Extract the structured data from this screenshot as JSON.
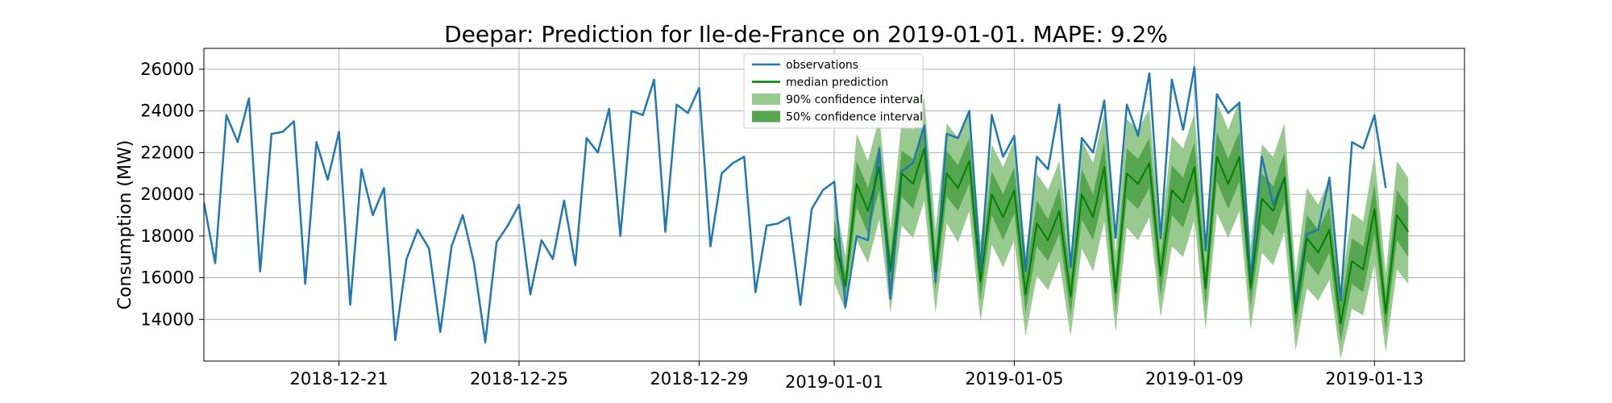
{
  "chart_data": {
    "type": "line",
    "title": "Deepar: Prediction for Ile-de-France on 2019-01-01. MAPE: 9.2%",
    "xlabel": "",
    "ylabel": "Consumption (MW)",
    "xlim": [
      "2018-12-18T00:00",
      "2019-01-15T00:00"
    ],
    "ylim": [
      12000,
      27000
    ],
    "y_ticks": [
      14000,
      16000,
      18000,
      20000,
      22000,
      24000,
      26000
    ],
    "x_ticks": [
      "2018-12-21",
      "2018-12-25",
      "2018-12-29",
      "2019-01-01",
      "2019-01-05",
      "2019-01-09",
      "2019-01-13"
    ],
    "grid": true,
    "legend_position": "top-center",
    "legend": [
      {
        "label": "observations",
        "kind": "line",
        "color": "#1f77b4"
      },
      {
        "label": "median prediction",
        "kind": "line",
        "color": "#008000"
      },
      {
        "label": "90% confidence interval",
        "kind": "band",
        "color": "#98c98f"
      },
      {
        "label": "50% confidence interval",
        "kind": "band",
        "color": "#56a64f"
      }
    ],
    "colors": {
      "observations": "#1f77b4",
      "median": "#008000",
      "band90": "#98c98f",
      "band50": "#56a64f"
    },
    "observations": {
      "start": "2018-12-18T00:00",
      "step_hours": 6,
      "values": [
        19600,
        16700,
        23800,
        22500,
        24600,
        16300,
        22900,
        23000,
        23500,
        15700,
        22500,
        20700,
        23000,
        14700,
        21200,
        19000,
        20300,
        13000,
        16900,
        18300,
        17400,
        13400,
        17500,
        19000,
        16700,
        12900,
        17700,
        18500,
        19500,
        15200,
        17800,
        16900,
        19700,
        16600,
        22700,
        22000,
        24100,
        18000,
        24000,
        23800,
        25500,
        18200,
        24300,
        23900,
        25100,
        17500,
        21000,
        21500,
        21800,
        15300,
        18500,
        18600,
        18900,
        14700,
        19300,
        20200,
        20600,
        14600,
        18000,
        17800,
        22200,
        15000,
        21100,
        21500,
        23300,
        15800,
        22900,
        22700,
        24000,
        16400,
        23800,
        21800,
        22800,
        16300,
        21800,
        21200,
        24300,
        16500,
        22700,
        22000,
        24500,
        17900,
        24300,
        22800,
        25800,
        17900,
        25500,
        23100,
        26100,
        17300,
        24800,
        23900,
        24400,
        15900,
        21800,
        19500,
        20800,
        14700,
        18100,
        18300,
        20800,
        14900,
        22500,
        22200,
        23800,
        20300
      ]
    },
    "prediction": {
      "start": "2019-01-01T00:00",
      "step_hours": 6,
      "median": [
        17900,
        15600,
        20500,
        19200,
        21300,
        16300,
        21000,
        20500,
        22200,
        16300,
        21000,
        20300,
        21600,
        15800,
        20000,
        18900,
        20200,
        15200,
        18600,
        17800,
        19200,
        15100,
        20000,
        18900,
        21300,
        15300,
        21000,
        20500,
        21500,
        16100,
        20200,
        19600,
        21300,
        15500,
        21800,
        20500,
        21800,
        15500,
        19800,
        19200,
        20800,
        14300,
        17900,
        17200,
        18300,
        13800,
        16800,
        16400,
        19300,
        14300,
        19000,
        18200
      ],
      "p5": [
        15800,
        14400,
        17800,
        16700,
        18800,
        14300,
        18500,
        17900,
        19700,
        14300,
        18600,
        17700,
        19200,
        13900,
        17600,
        16500,
        17800,
        13200,
        16100,
        15400,
        16800,
        13200,
        17400,
        16300,
        18700,
        13400,
        18400,
        17800,
        18900,
        14100,
        17500,
        17000,
        18800,
        13500,
        19100,
        17900,
        19200,
        13500,
        17200,
        16600,
        18200,
        12500,
        15500,
        14900,
        15900,
        12100,
        14500,
        14200,
        16700,
        12400,
        16400,
        15700
      ],
      "p25": [
        17000,
        15000,
        19400,
        18100,
        20200,
        15400,
        19900,
        19300,
        21100,
        15400,
        19900,
        19200,
        20500,
        14900,
        19000,
        17800,
        19100,
        14300,
        17500,
        16800,
        18100,
        14200,
        18800,
        17800,
        20100,
        14400,
        19800,
        19300,
        20300,
        15100,
        19000,
        18400,
        20100,
        14600,
        20600,
        19300,
        20600,
        14600,
        18600,
        18000,
        19600,
        13500,
        16800,
        16100,
        17200,
        12900,
        15700,
        15300,
        18100,
        13400,
        17800,
        17000
      ],
      "p75": [
        18800,
        16200,
        21600,
        20300,
        22400,
        17100,
        22100,
        21700,
        23300,
        17200,
        22100,
        21400,
        22700,
        16700,
        21100,
        20000,
        21300,
        16100,
        19700,
        18800,
        20300,
        16000,
        21200,
        20000,
        22500,
        16200,
        22200,
        21700,
        22700,
        17000,
        21400,
        20800,
        22500,
        16400,
        23000,
        21700,
        23000,
        16400,
        21000,
        20400,
        22000,
        15200,
        19000,
        18300,
        19400,
        14700,
        17900,
        17500,
        20500,
        15200,
        20200,
        19400
      ],
      "p95": [
        20000,
        17000,
        22900,
        21600,
        23700,
        18300,
        23500,
        23100,
        24600,
        18300,
        23400,
        22700,
        24000,
        17700,
        22400,
        21300,
        22600,
        17200,
        21000,
        20200,
        21600,
        17000,
        22600,
        21500,
        23900,
        17200,
        23600,
        23100,
        24100,
        18000,
        22800,
        22200,
        23900,
        17500,
        24400,
        23100,
        24500,
        17500,
        22400,
        21800,
        23400,
        16200,
        20300,
        19500,
        20700,
        15500,
        19100,
        18700,
        21900,
        16200,
        21600,
        20800
      ]
    }
  }
}
